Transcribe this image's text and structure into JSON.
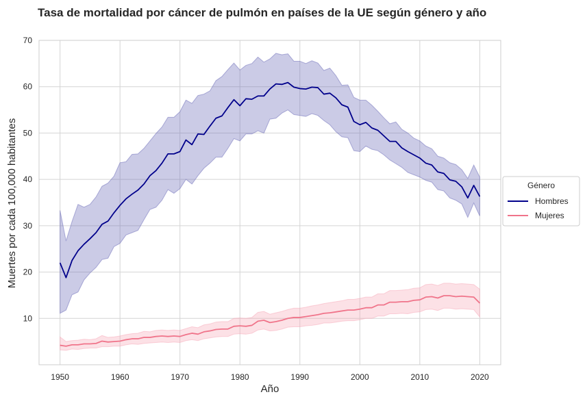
{
  "chart_data": {
    "type": "line",
    "title": "Tasa de mortalidad por cáncer de pulmón en países de la UE según género y año",
    "xlabel": "Año",
    "ylabel": "Muertes por cada 100,000 habitantes",
    "xlim": [
      1946.5,
      2023.5
    ],
    "ylim": [
      0,
      70
    ],
    "xticks": [
      1950,
      1960,
      1970,
      1980,
      1990,
      2000,
      2010,
      2020
    ],
    "yticks": [
      10,
      20,
      30,
      40,
      50,
      60,
      70
    ],
    "grid": true,
    "legend": {
      "title": "Género",
      "placement": "outside-right"
    },
    "x": [
      1950,
      1951,
      1952,
      1953,
      1954,
      1955,
      1956,
      1957,
      1958,
      1959,
      1960,
      1961,
      1962,
      1963,
      1964,
      1965,
      1966,
      1967,
      1968,
      1969,
      1970,
      1971,
      1972,
      1973,
      1974,
      1975,
      1976,
      1977,
      1978,
      1979,
      1980,
      1981,
      1982,
      1983,
      1984,
      1985,
      1986,
      1987,
      1988,
      1989,
      1990,
      1991,
      1992,
      1993,
      1994,
      1995,
      1996,
      1997,
      1998,
      1999,
      2000,
      2001,
      2002,
      2003,
      2004,
      2005,
      2006,
      2007,
      2008,
      2009,
      2010,
      2011,
      2012,
      2013,
      2014,
      2015,
      2016,
      2017,
      2018,
      2019,
      2020
    ],
    "series": [
      {
        "name": "Hombres",
        "color": "#00008b",
        "band_color": "#6a6ab8",
        "values": [
          22.0,
          18.8,
          22.5,
          24.6,
          26.0,
          27.2,
          28.5,
          30.3,
          31.0,
          32.8,
          34.4,
          35.8,
          36.8,
          37.7,
          39.0,
          40.8,
          41.9,
          43.5,
          45.5,
          45.5,
          46.0,
          48.5,
          47.5,
          49.8,
          49.7,
          51.5,
          53.2,
          53.7,
          55.5,
          57.2,
          55.9,
          57.4,
          57.3,
          58.0,
          58.0,
          59.5,
          60.6,
          60.5,
          60.9,
          59.9,
          59.6,
          59.5,
          59.9,
          59.8,
          58.4,
          58.6,
          57.6,
          56.1,
          55.6,
          52.5,
          51.8,
          52.3,
          51.1,
          50.6,
          49.4,
          48.2,
          48.2,
          46.8,
          46.0,
          45.3,
          44.6,
          43.5,
          43.1,
          41.6,
          41.3,
          39.9,
          39.6,
          38.4,
          36.0,
          38.7,
          36.3
        ],
        "ci_low": [
          11.1,
          11.8,
          15.1,
          15.7,
          18.3,
          19.8,
          21.0,
          22.7,
          23.0,
          25.5,
          26.2,
          28.0,
          28.5,
          29.0,
          31.3,
          33.5,
          34.0,
          35.5,
          37.8,
          37.0,
          38.0,
          40.0,
          39.0,
          40.8,
          42.4,
          43.5,
          44.8,
          44.8,
          46.7,
          48.8,
          48.3,
          49.8,
          49.8,
          50.5,
          50.0,
          53.0,
          53.2,
          54.3,
          55.0,
          54.0,
          53.8,
          53.6,
          54.2,
          53.8,
          52.7,
          51.8,
          50.3,
          49.2,
          49.0,
          46.2,
          46.0,
          47.2,
          46.5,
          46.2,
          45.3,
          44.2,
          43.4,
          42.6,
          41.5,
          41.0,
          40.5,
          39.8,
          39.4,
          37.8,
          37.5,
          36.0,
          35.5,
          34.7,
          31.8,
          34.9,
          32.1
        ],
        "ci_high": [
          33.3,
          26.7,
          30.9,
          34.6,
          34.0,
          34.6,
          36.2,
          38.5,
          39.2,
          40.7,
          43.6,
          43.8,
          45.4,
          45.5,
          46.7,
          48.3,
          49.9,
          51.3,
          53.4,
          53.4,
          54.6,
          57.1,
          56.4,
          58.1,
          58.4,
          59.1,
          61.3,
          62.2,
          63.7,
          65.1,
          63.6,
          64.6,
          65.0,
          66.4,
          65.3,
          66.0,
          67.2,
          66.9,
          67.1,
          65.5,
          65.5,
          65.0,
          65.6,
          65.1,
          63.5,
          64.0,
          62.4,
          60.3,
          60.4,
          57.7,
          57.1,
          57.1,
          56.0,
          54.7,
          53.3,
          52.0,
          52.4,
          50.8,
          50.0,
          48.9,
          48.3,
          47.2,
          46.6,
          45.0,
          44.6,
          43.6,
          43.2,
          42.1,
          40.2,
          43.1,
          40.5
        ]
      },
      {
        "name": "Mujeres",
        "color": "#f0748a",
        "band_color": "#f7a8b8",
        "values": [
          4.2,
          4.0,
          4.3,
          4.3,
          4.5,
          4.5,
          4.6,
          5.1,
          4.9,
          5.0,
          5.1,
          5.4,
          5.6,
          5.6,
          5.9,
          5.9,
          6.1,
          6.2,
          6.1,
          6.2,
          6.1,
          6.5,
          6.8,
          6.6,
          7.1,
          7.3,
          7.6,
          7.7,
          7.7,
          8.3,
          8.4,
          8.3,
          8.5,
          9.4,
          9.6,
          9.1,
          9.3,
          9.6,
          10.0,
          10.2,
          10.2,
          10.4,
          10.6,
          10.8,
          11.1,
          11.2,
          11.4,
          11.6,
          11.8,
          11.8,
          12.0,
          12.3,
          12.3,
          12.9,
          12.9,
          13.5,
          13.5,
          13.6,
          13.6,
          13.9,
          14.0,
          14.6,
          14.7,
          14.4,
          14.9,
          14.9,
          14.7,
          14.8,
          14.7,
          14.6,
          13.3
        ],
        "ci_low": [
          3.2,
          3.1,
          3.4,
          3.3,
          3.5,
          3.6,
          3.6,
          3.9,
          3.9,
          4.0,
          4.0,
          4.3,
          4.5,
          4.4,
          4.6,
          4.7,
          4.8,
          4.9,
          4.8,
          4.9,
          4.8,
          5.2,
          5.4,
          5.2,
          5.6,
          5.8,
          6.0,
          6.1,
          6.1,
          6.6,
          6.7,
          6.6,
          6.8,
          7.5,
          7.7,
          7.3,
          7.4,
          7.7,
          8.1,
          8.2,
          8.2,
          8.4,
          8.5,
          8.7,
          9.0,
          9.0,
          9.2,
          9.4,
          9.5,
          9.5,
          9.7,
          10.0,
          10.0,
          10.5,
          10.5,
          11.0,
          11.0,
          11.1,
          11.0,
          11.3,
          11.4,
          11.9,
          12.0,
          11.7,
          12.2,
          12.2,
          12.0,
          12.1,
          12.0,
          11.9,
          10.3
        ],
        "ci_high": [
          6.0,
          5.0,
          5.2,
          5.3,
          5.5,
          5.4,
          5.6,
          6.3,
          5.9,
          6.0,
          6.2,
          6.5,
          6.7,
          6.8,
          7.2,
          7.1,
          7.4,
          7.5,
          7.4,
          7.5,
          7.4,
          7.8,
          8.2,
          8.0,
          8.6,
          8.8,
          9.2,
          9.3,
          9.3,
          10.0,
          10.1,
          10.0,
          10.2,
          11.3,
          11.5,
          10.9,
          11.2,
          11.5,
          11.9,
          12.2,
          12.2,
          12.4,
          12.7,
          12.9,
          13.2,
          13.4,
          13.6,
          13.8,
          14.1,
          14.1,
          14.3,
          14.6,
          14.6,
          15.3,
          15.3,
          16.0,
          16.0,
          16.1,
          16.2,
          16.5,
          16.6,
          17.3,
          17.4,
          17.1,
          17.6,
          17.6,
          17.4,
          17.5,
          17.4,
          17.3,
          16.3
        ]
      }
    ]
  }
}
